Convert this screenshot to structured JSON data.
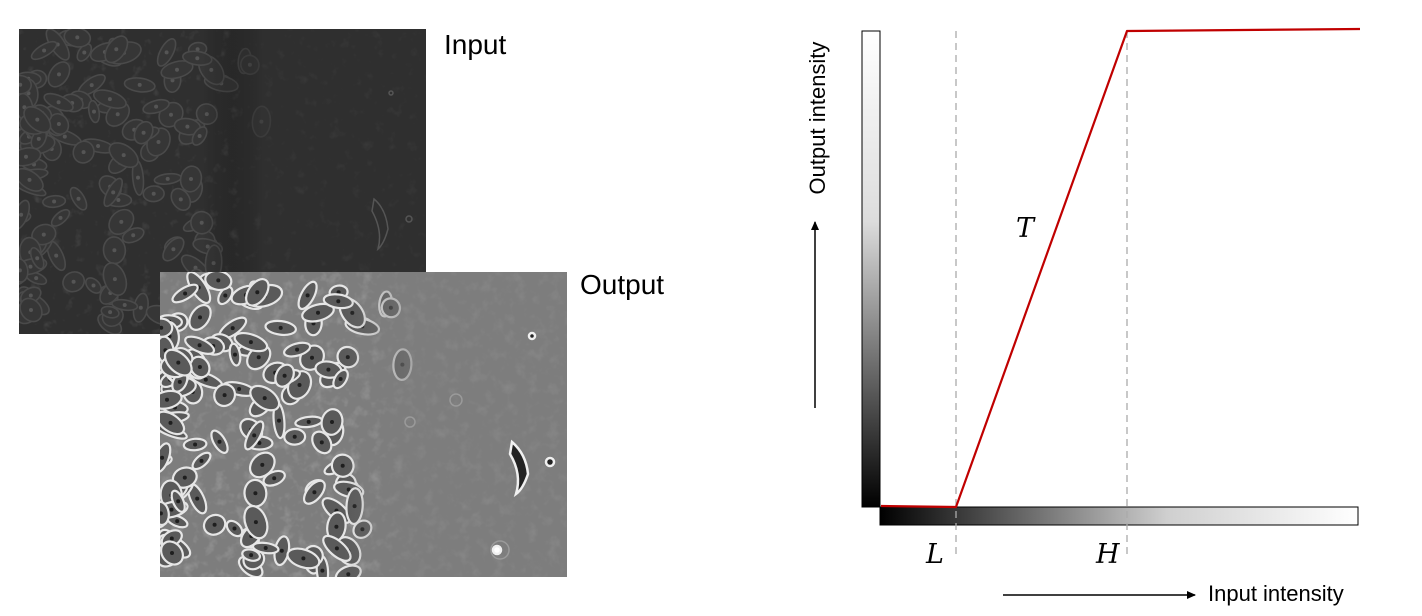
{
  "images": {
    "input_label": "Input",
    "output_label": "Output"
  },
  "diagram": {
    "x_axis_label": "Input intensity",
    "y_axis_label": "Output intensity",
    "low_threshold_label": "L",
    "high_threshold_label": "H",
    "transform_label": "T"
  },
  "colors": {
    "mapping_curve": "#c00000",
    "threshold_lines": "#aaaaaa",
    "input_image_tone": "#2f2f2f",
    "output_image_tone": "#7d7d7d"
  }
}
